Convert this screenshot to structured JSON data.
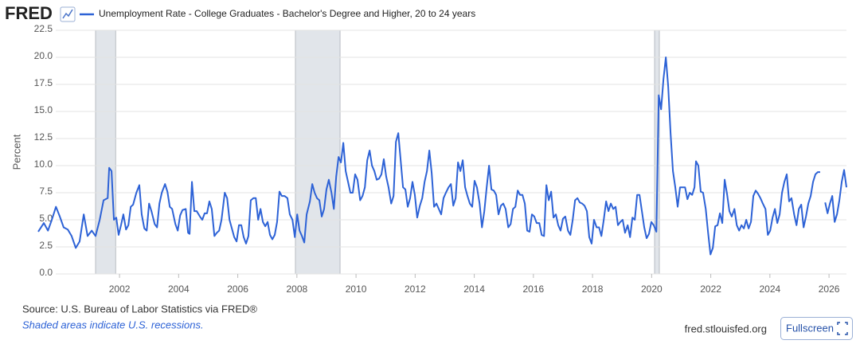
{
  "chart_data": {
    "type": "line",
    "logo": "FRED",
    "ylabel": "Percent",
    "source": "Source: U.S. Bureau of Labor Statistics via FRED®",
    "note": "Shaded areas indicate U.S. recessions.",
    "site": "fred.stlouisfed.org",
    "button": "Fullscreen",
    "grid": true,
    "recession_color": "#e1e5ea",
    "recessions": [
      [
        2001.19,
        2001.87
      ],
      [
        2007.95,
        2009.46
      ],
      [
        2020.1,
        2020.26
      ]
    ],
    "xlim": [
      1999.25,
      2026.59
    ],
    "xticks": [
      2002,
      2004,
      2006,
      2008,
      2010,
      2012,
      2014,
      2016,
      2018,
      2020,
      2022,
      2024,
      2026
    ],
    "ylim": [
      0,
      22.5
    ],
    "yticks": [
      {
        "value": 0,
        "label": "0.0"
      },
      2.5,
      {
        "value": 5,
        "label": "5.0"
      },
      7.5,
      {
        "value": 10,
        "label": "10.0"
      },
      12.5,
      {
        "value": 15,
        "label": "15.0"
      },
      17.5,
      {
        "value": 20,
        "label": "20.0"
      },
      22.5
    ],
    "x": [
      1999.25,
      1999.44,
      1999.58,
      1999.71,
      1999.85,
      1999.98,
      2000.11,
      2000.25,
      2000.38,
      2000.52,
      2000.65,
      2000.79,
      2000.92,
      2001.06,
      2001.19,
      2001.33,
      2001.46,
      2001.6,
      2001.65,
      2001.73,
      2001.81,
      2001.89,
      2001.97,
      2002.05,
      2002.13,
      2002.22,
      2002.3,
      2002.38,
      2002.46,
      2002.57,
      2002.67,
      2002.75,
      2002.84,
      2002.92,
      2003.0,
      2003.08,
      2003.19,
      2003.27,
      2003.35,
      2003.43,
      2003.54,
      2003.62,
      2003.7,
      2003.78,
      2003.89,
      2003.97,
      2004.05,
      2004.13,
      2004.24,
      2004.32,
      2004.37,
      2004.45,
      2004.53,
      2004.61,
      2004.72,
      2004.8,
      2004.88,
      2004.96,
      2005.04,
      2005.12,
      2005.21,
      2005.29,
      2005.37,
      2005.45,
      2005.56,
      2005.64,
      2005.72,
      2005.8,
      2005.88,
      2005.96,
      2006.04,
      2006.12,
      2006.2,
      2006.28,
      2006.36,
      2006.44,
      2006.53,
      2006.61,
      2006.69,
      2006.77,
      2006.85,
      2006.93,
      2007.01,
      2007.09,
      2007.17,
      2007.25,
      2007.33,
      2007.41,
      2007.49,
      2007.58,
      2007.68,
      2007.76,
      2007.85,
      2007.93,
      2008.01,
      2008.09,
      2008.17,
      2008.25,
      2008.33,
      2008.44,
      2008.52,
      2008.6,
      2008.68,
      2008.76,
      2008.84,
      2008.92,
      2009.0,
      2009.08,
      2009.17,
      2009.25,
      2009.33,
      2009.41,
      2009.49,
      2009.57,
      2009.65,
      2009.73,
      2009.81,
      2009.89,
      2009.97,
      2010.05,
      2010.14,
      2010.22,
      2010.3,
      2010.38,
      2010.46,
      2010.54,
      2010.62,
      2010.7,
      2010.78,
      2010.86,
      2010.94,
      2011.02,
      2011.1,
      2011.19,
      2011.27,
      2011.35,
      2011.43,
      2011.51,
      2011.59,
      2011.67,
      2011.75,
      2011.83,
      2011.91,
      2011.99,
      2012.07,
      2012.16,
      2012.24,
      2012.32,
      2012.4,
      2012.48,
      2012.56,
      2012.64,
      2012.72,
      2012.8,
      2012.88,
      2012.96,
      2013.04,
      2013.13,
      2013.21,
      2013.29,
      2013.37,
      2013.45,
      2013.53,
      2013.61,
      2013.69,
      2013.77,
      2013.85,
      2013.93,
      2014.01,
      2014.09,
      2014.18,
      2014.26,
      2014.34,
      2014.42,
      2014.5,
      2014.58,
      2014.66,
      2014.74,
      2014.82,
      2014.9,
      2014.98,
      2015.06,
      2015.15,
      2015.23,
      2015.31,
      2015.39,
      2015.47,
      2015.55,
      2015.63,
      2015.71,
      2015.79,
      2015.87,
      2015.95,
      2016.03,
      2016.11,
      2016.2,
      2016.28,
      2016.36,
      2016.44,
      2016.52,
      2016.6,
      2016.68,
      2016.76,
      2016.84,
      2016.92,
      2017.0,
      2017.08,
      2017.17,
      2017.25,
      2017.33,
      2017.41,
      2017.49,
      2017.57,
      2017.65,
      2017.73,
      2017.81,
      2017.89,
      2017.97,
      2018.05,
      2018.14,
      2018.22,
      2018.3,
      2018.38,
      2018.46,
      2018.54,
      2018.62,
      2018.7,
      2018.78,
      2018.86,
      2018.94,
      2019.02,
      2019.1,
      2019.19,
      2019.27,
      2019.35,
      2019.43,
      2019.51,
      2019.59,
      2019.67,
      2019.75,
      2019.83,
      2019.91,
      2019.99,
      2020.07,
      2020.16,
      2020.24,
      2020.32,
      2020.4,
      2020.48,
      2020.56,
      2020.64,
      2020.72,
      2020.8,
      2020.88,
      2020.96,
      2021.04,
      2021.13,
      2021.21,
      2021.29,
      2021.37,
      2021.45,
      2021.5,
      2021.58,
      2021.66,
      2021.74,
      2021.83,
      2021.91,
      2021.99,
      2022.07,
      2022.15,
      2022.23,
      2022.31,
      2022.39,
      2022.47,
      2022.55,
      2022.63,
      2022.71,
      2022.8,
      2022.88,
      2022.96,
      2023.04,
      2023.12,
      2023.2,
      2023.28,
      2023.36,
      2023.44,
      2023.52,
      2023.6,
      2023.68,
      2023.76,
      2023.85,
      2023.93,
      2024.01,
      2024.09,
      2024.17,
      2024.25,
      2024.33,
      2024.41,
      2024.49,
      2024.57,
      2024.65,
      2024.73,
      2024.82,
      2024.9,
      2024.98,
      2025.06,
      2025.14,
      2025.22,
      2025.3,
      2025.38,
      2025.46,
      2025.54,
      2025.62,
      2025.7,
      2025.78,
      2025.87,
      2025.95,
      2026.03,
      2026.11,
      2026.19,
      2026.27,
      2026.35,
      2026.43,
      2026.51,
      2026.59
    ],
    "series": [
      {
        "name": "Unemployment Rate - College Graduates - Bachelor's Degree and Higher, 20 to 24 years",
        "color": "#2d62d6",
        "values": [
          3.9,
          4.7,
          4.0,
          5.0,
          6.2,
          5.3,
          4.3,
          4.1,
          3.5,
          2.4,
          3.0,
          5.5,
          3.5,
          4.0,
          3.5,
          5.0,
          6.8,
          7.0,
          9.8,
          9.5,
          5.0,
          5.2,
          3.6,
          4.5,
          5.5,
          4.1,
          4.5,
          6.2,
          6.4,
          7.5,
          8.2,
          5.5,
          4.2,
          4.0,
          6.5,
          5.8,
          4.6,
          4.3,
          6.5,
          7.5,
          8.3,
          7.6,
          6.2,
          6.0,
          4.6,
          4.0,
          5.4,
          5.9,
          6.0,
          3.8,
          3.7,
          8.5,
          5.8,
          5.8,
          5.3,
          5.0,
          5.6,
          5.6,
          6.7,
          6.0,
          3.5,
          3.8,
          4.0,
          5.0,
          7.5,
          7.0,
          5.0,
          4.2,
          3.4,
          3.0,
          4.5,
          4.5,
          3.4,
          2.8,
          3.5,
          6.8,
          7.0,
          7.0,
          5.0,
          6.0,
          4.8,
          4.4,
          4.8,
          3.6,
          3.2,
          3.6,
          4.8,
          7.6,
          7.2,
          7.2,
          7.0,
          5.5,
          5.0,
          3.4,
          5.5,
          4.0,
          3.5,
          2.9,
          5.5,
          6.7,
          8.3,
          7.5,
          7.0,
          6.8,
          5.3,
          6.0,
          7.8,
          8.7,
          7.5,
          6.0,
          9.0,
          10.8,
          10.3,
          12.1,
          9.5,
          8.5,
          7.5,
          7.5,
          9.2,
          8.7,
          6.8,
          7.2,
          8.0,
          10.5,
          11.4,
          10.0,
          9.5,
          8.7,
          8.8,
          9.2,
          10.6,
          9.0,
          8.0,
          6.5,
          7.2,
          12.2,
          13.0,
          10.5,
          8.0,
          7.8,
          6.2,
          7.0,
          8.5,
          7.3,
          5.2,
          6.3,
          7.0,
          8.5,
          9.5,
          11.4,
          9.3,
          6.2,
          6.5,
          6.0,
          5.5,
          7.0,
          7.5,
          8.0,
          8.3,
          6.3,
          7.0,
          10.3,
          9.5,
          10.5,
          8.0,
          7.2,
          6.5,
          6.2,
          8.6,
          8.0,
          6.5,
          4.3,
          5.8,
          8.0,
          10.0,
          7.8,
          7.7,
          7.3,
          5.5,
          6.3,
          6.5,
          6.0,
          4.3,
          4.6,
          6.0,
          6.2,
          7.7,
          7.3,
          7.3,
          6.5,
          4.0,
          3.9,
          5.5,
          5.3,
          4.7,
          4.7,
          3.6,
          3.5,
          8.2,
          6.8,
          7.6,
          5.2,
          5.5,
          4.5,
          4.0,
          5.1,
          5.3,
          4.0,
          3.6,
          5.0,
          6.8,
          7.0,
          6.6,
          6.5,
          6.3,
          5.8,
          3.4,
          2.8,
          5.0,
          4.3,
          4.3,
          3.5,
          5.0,
          6.7,
          5.8,
          6.5,
          6.0,
          6.2,
          4.5,
          4.8,
          5.0,
          3.8,
          4.5,
          3.4,
          5.2,
          5.0,
          7.3,
          7.3,
          5.8,
          4.3,
          3.3,
          3.7,
          4.8,
          4.5,
          3.9,
          16.5,
          15.2,
          18.0,
          20.0,
          17.3,
          13.0,
          9.5,
          8.0,
          6.2,
          8.0,
          8.0,
          8.0,
          6.9,
          7.5,
          7.3,
          8.0,
          10.4,
          10.0,
          7.6,
          7.5,
          6.0,
          3.8,
          1.8,
          2.4,
          4.4,
          4.5,
          5.6,
          4.7,
          8.7,
          7.4,
          5.8,
          5.3,
          6.0,
          4.5,
          4.0,
          4.5,
          4.2,
          5.0,
          4.2,
          4.8,
          7.2,
          7.7,
          7.4,
          7.0,
          6.5,
          6.0,
          3.6,
          4.0,
          5.2,
          6.0,
          4.7,
          5.5,
          7.5,
          8.5,
          9.2,
          6.7,
          7.0,
          5.5,
          4.5,
          6.0,
          6.4,
          4.3,
          5.3,
          6.5,
          7.2,
          8.5,
          9.2,
          9.4,
          9.4,
          null,
          6.6,
          5.6,
          6.5,
          7.2,
          4.8,
          5.5,
          6.8,
          8.5,
          9.6,
          8.0
        ]
      }
    ]
  }
}
